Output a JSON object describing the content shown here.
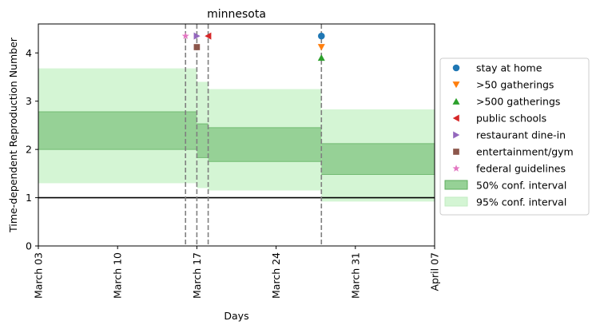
{
  "chart_data": {
    "type": "area",
    "title": "minnesota",
    "xlabel": "Days",
    "ylabel": "Time-dependent Reproduction Number",
    "xlim": [
      "2020-03-03",
      "2020-04-07"
    ],
    "ylim": [
      0,
      4.6
    ],
    "yticks": [
      0,
      1,
      2,
      3,
      4
    ],
    "xticks": [
      {
        "date": "2020-03-03",
        "label": "March 03"
      },
      {
        "date": "2020-03-10",
        "label": "March 10"
      },
      {
        "date": "2020-03-17",
        "label": "March 17"
      },
      {
        "date": "2020-03-24",
        "label": "March 24"
      },
      {
        "date": "2020-03-31",
        "label": "March 31"
      },
      {
        "date": "2020-04-07",
        "label": "April 07"
      }
    ],
    "grid": false,
    "legend_position": "right, outside",
    "reference_line": {
      "y": 1,
      "color": "#000000"
    },
    "intervals": [
      {
        "start": "2020-03-03",
        "end": "2020-03-17",
        "ci50": [
          2.0,
          2.78
        ],
        "ci95": [
          1.3,
          3.68
        ]
      },
      {
        "start": "2020-03-17",
        "end": "2020-03-18",
        "ci50": [
          1.83,
          2.53
        ],
        "ci95": [
          1.2,
          3.4
        ]
      },
      {
        "start": "2020-03-18",
        "end": "2020-03-28",
        "ci50": [
          1.75,
          2.45
        ],
        "ci95": [
          1.15,
          3.25
        ]
      },
      {
        "start": "2020-03-28",
        "end": "2020-04-07",
        "ci50": [
          1.48,
          2.12
        ],
        "ci95": [
          0.92,
          2.83
        ]
      }
    ],
    "interventions": [
      {
        "name": "stay at home",
        "date": "2020-03-28",
        "y": 4.35,
        "marker": "circle",
        "color": "#1f77b4"
      },
      {
        "name": ">50 gatherings",
        "date": "2020-03-28",
        "y": 4.12,
        "marker": "triangle-down",
        "color": "#ff7f0e"
      },
      {
        "name": ">500 gatherings",
        "date": "2020-03-28",
        "y": 3.9,
        "marker": "triangle-up",
        "color": "#2ca02c"
      },
      {
        "name": "public schools",
        "date": "2020-03-18",
        "y": 4.35,
        "marker": "triangle-left",
        "color": "#d62728"
      },
      {
        "name": "restaurant dine-in",
        "date": "2020-03-17",
        "y": 4.35,
        "marker": "triangle-right",
        "color": "#9467bd"
      },
      {
        "name": "entertainment/gym",
        "date": "2020-03-17",
        "y": 4.12,
        "marker": "square",
        "color": "#8c564b"
      },
      {
        "name": "federal guidelines",
        "date": "2020-03-16",
        "y": 4.35,
        "marker": "star",
        "color": "#e377c2"
      }
    ],
    "vlines": [
      "2020-03-16",
      "2020-03-17",
      "2020-03-18",
      "2020-03-28"
    ],
    "legend": [
      {
        "label": "stay at home",
        "symbol": "circle",
        "color": "#1f77b4"
      },
      {
        "label": ">50 gatherings",
        "symbol": "triangle-down",
        "color": "#ff7f0e"
      },
      {
        "label": ">500 gatherings",
        "symbol": "triangle-up",
        "color": "#2ca02c"
      },
      {
        "label": "public schools",
        "symbol": "triangle-left",
        "color": "#d62728"
      },
      {
        "label": "restaurant dine-in",
        "symbol": "triangle-right",
        "color": "#9467bd"
      },
      {
        "label": "entertainment/gym",
        "symbol": "square",
        "color": "#8c564b"
      },
      {
        "label": "federal guidelines",
        "symbol": "star",
        "color": "#e377c2"
      },
      {
        "label": "50% conf. interval",
        "symbol": "patch",
        "color": "#96d196",
        "edge": "#5fae5f"
      },
      {
        "label": "95% conf. interval",
        "symbol": "patch",
        "color": "#d4f5d4",
        "edge": "#c2ecc2"
      }
    ],
    "colors": {
      "ci50": "#96d196",
      "ci50_edge": "#72bb72",
      "ci95": "#d4f5d4",
      "vline": "#7f7f7f"
    }
  }
}
